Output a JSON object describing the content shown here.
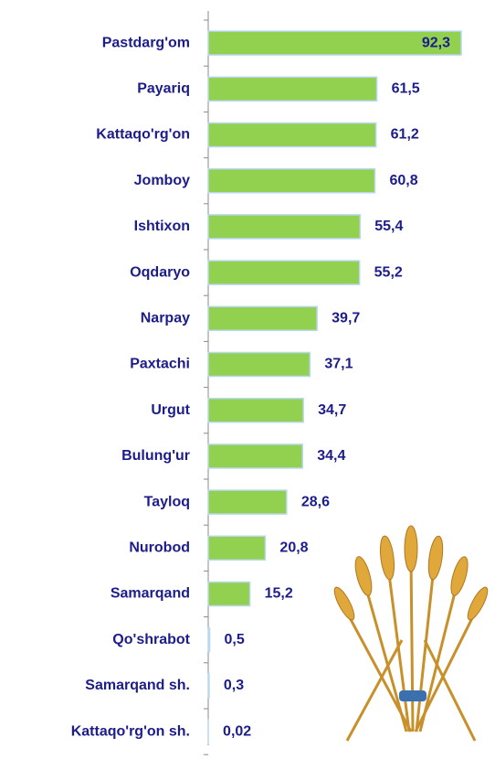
{
  "chart_data": {
    "type": "bar",
    "orientation": "horizontal",
    "color": "#92d050",
    "categories": [
      "Pastdarg'om",
      "Payariq",
      "Kattaqo'rg'on",
      "Jomboy",
      "Ishtixon",
      "Oqdaryo",
      "Narpay",
      "Paxtachi",
      "Urgut",
      "Bulung'ur",
      "Tayloq",
      "Nurobod",
      "Samarqand",
      "Qo'shrabot",
      "Samarqand sh.",
      "Kattaqo'rg'on sh."
    ],
    "values": [
      92.3,
      61.5,
      61.2,
      60.8,
      55.4,
      55.2,
      39.7,
      37.1,
      34.7,
      34.4,
      28.6,
      20.8,
      15.2,
      0.5,
      0.3,
      0.02
    ],
    "value_labels": [
      "92,3",
      "61,5",
      "61,2",
      "60,8",
      "55,4",
      "55,2",
      "39,7",
      "37,1",
      "34,7",
      "34,4",
      "28,6",
      "20,8",
      "15,2",
      "0,5",
      "0,3",
      "0,02"
    ]
  }
}
